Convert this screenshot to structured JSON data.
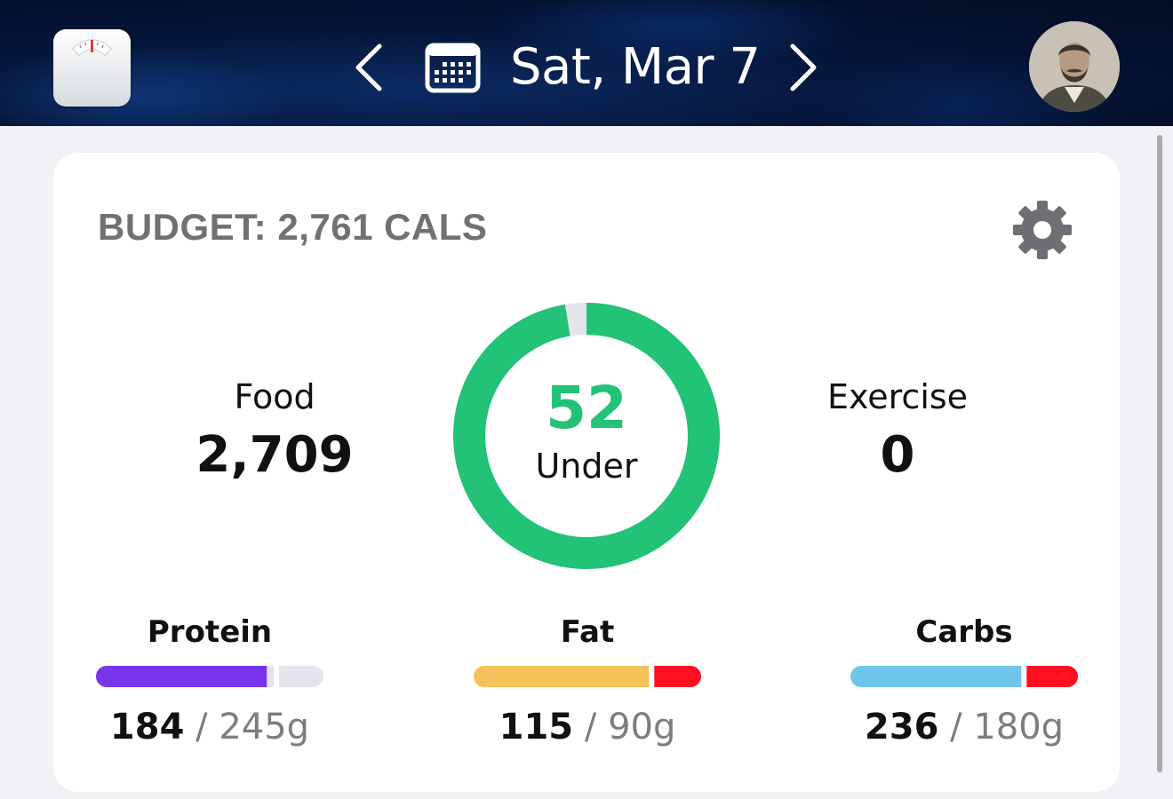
{
  "header": {
    "app_icon": "bathroom-scale-icon",
    "prev_icon": "chevron-left-icon",
    "calendar_icon": "calendar-icon",
    "date": "Sat, Mar 7",
    "next_icon": "chevron-right-icon",
    "avatar": "user-avatar"
  },
  "budget": {
    "title": "BUDGET: 2,761 CALS",
    "settings_icon": "gear-icon"
  },
  "food": {
    "label": "Food",
    "value": "2,709"
  },
  "exercise": {
    "label": "Exercise",
    "value": "0"
  },
  "ring": {
    "value": "52",
    "label": "Under",
    "consumed_fraction": 0.981,
    "color_consumed": "#22c277",
    "color_remaining": "#e4e4ec"
  },
  "macros": [
    {
      "name": "Protein",
      "eaten": "184",
      "separator": "/",
      "goal": "245g",
      "fraction": 0.751,
      "color": "#7a35ec",
      "over_color": "#e4e4ec"
    },
    {
      "name": "Fat",
      "eaten": "115",
      "separator": "/",
      "goal": "90g",
      "fraction": 1.278,
      "color": "#f4c15a",
      "over_color": "#ff1020"
    },
    {
      "name": "Carbs",
      "eaten": "236",
      "separator": "/",
      "goal": "180g",
      "fraction": 1.311,
      "color": "#6fc6ea",
      "over_color": "#ff1020"
    }
  ]
}
